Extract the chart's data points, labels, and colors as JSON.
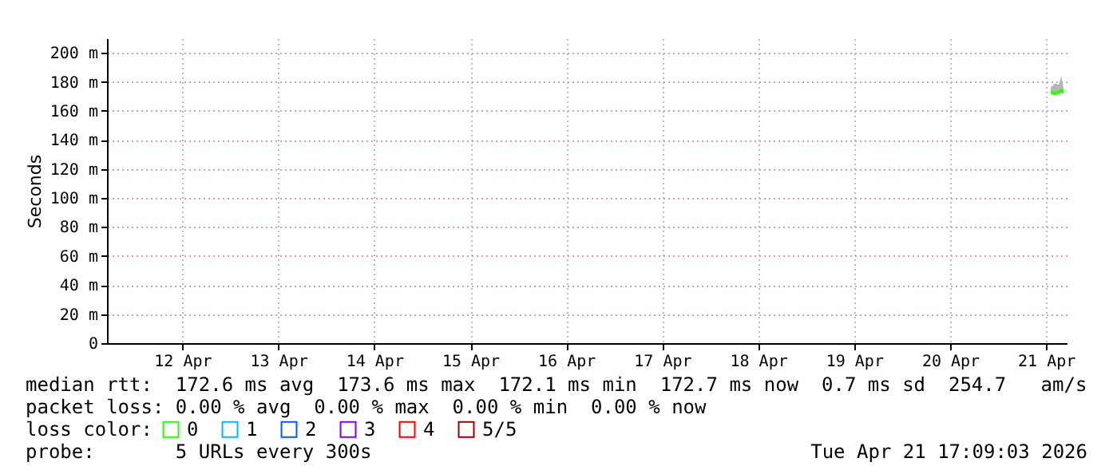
{
  "chart_data": {
    "type": "line",
    "ylabel": "Seconds",
    "x": [
      "2026-04-21T13:10",
      "2026-04-21T14:10",
      "2026-04-21T15:10",
      "2026-04-21T15:50",
      "2026-04-21T16:20"
    ],
    "series": [
      {
        "name": "0",
        "color": "#26ff00",
        "values": [
          173,
          172,
          173,
          174,
          173
        ],
        "lower": [
          172,
          171,
          172,
          172,
          172
        ],
        "upper": [
          176,
          179,
          178,
          184,
          176
        ]
      },
      {
        "name": "1",
        "color": "#00b8ff",
        "values": [
          null,
          null,
          null,
          null,
          null
        ]
      },
      {
        "name": "2",
        "color": "#0059ff",
        "values": [
          null,
          null,
          null,
          null,
          null
        ]
      },
      {
        "name": "3",
        "color": "#7e00ff",
        "values": [
          null,
          null,
          null,
          null,
          null
        ]
      },
      {
        "name": "4",
        "color": "#ff0000",
        "values": [
          null,
          null,
          null,
          null,
          null
        ]
      },
      {
        "name": "5/5",
        "color": "#a10000",
        "values": [
          null,
          null,
          null,
          null,
          null
        ]
      }
    ],
    "legend_title": "loss color:",
    "legend": "bottom left",
    "xlim": [
      "2026-04-11T17:09",
      "2026-04-21T17:09"
    ],
    "xticks": [
      {
        "value": "2026-04-12T12:00",
        "label": "12 Apr"
      },
      {
        "value": "2026-04-13T12:00",
        "label": "13 Apr"
      },
      {
        "value": "2026-04-14T12:00",
        "label": "14 Apr"
      },
      {
        "value": "2026-04-15T12:00",
        "label": "15 Apr"
      },
      {
        "value": "2026-04-16T12:00",
        "label": "16 Apr"
      },
      {
        "value": "2026-04-17T12:00",
        "label": "17 Apr"
      },
      {
        "value": "2026-04-18T12:00",
        "label": "18 Apr"
      },
      {
        "value": "2026-04-19T12:00",
        "label": "19 Apr"
      },
      {
        "value": "2026-04-20T12:00",
        "label": "20 Apr"
      },
      {
        "value": "2026-04-21T12:00",
        "label": "21 Apr"
      }
    ],
    "ylim": [
      0,
      210
    ],
    "yticks": [
      0,
      {
        "value": 20,
        "label": "20 m"
      },
      {
        "value": 40,
        "label": "40 m"
      },
      {
        "value": 60,
        "label": "60 m"
      },
      {
        "value": 80,
        "label": "80 m"
      },
      {
        "value": 100,
        "label": "100 m"
      },
      {
        "value": 120,
        "label": "120 m"
      },
      {
        "value": 140,
        "label": "140 m"
      },
      {
        "value": 160,
        "label": "160 m"
      },
      {
        "value": 180,
        "label": "180 m"
      },
      {
        "value": 200,
        "label": "200 m"
      }
    ],
    "grid": true,
    "marker": "none",
    "line_style": "solid",
    "annotations": [
      "median rtt:  172.6 ms avg  173.6 ms max  172.1 ms min  172.7 ms now  0.7 ms sd  254.7   am/s",
      "packet loss: 0.00 % avg  0.00 % max  0.00 % min  0.00 % now",
      "probe:       5 URLs every 300s",
      "Tue Apr 21 17:09:03 2026"
    ]
  }
}
